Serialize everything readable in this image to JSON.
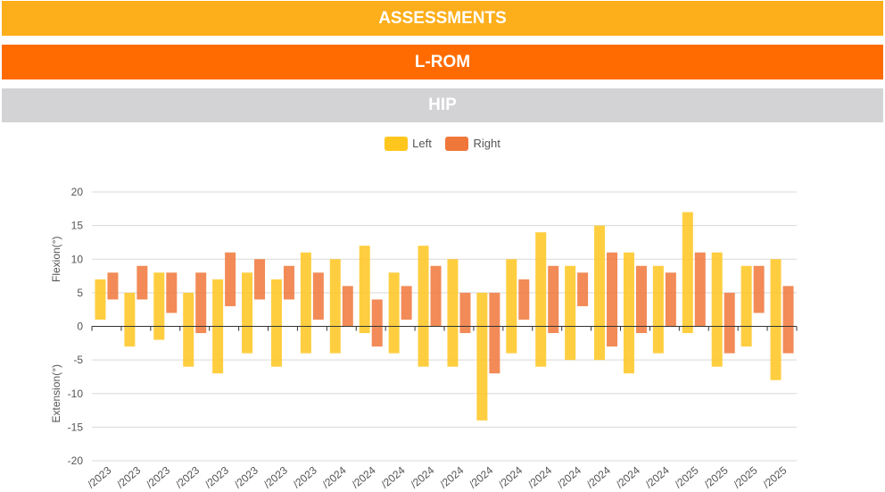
{
  "header": {
    "assessments_label": "ASSESSMENTS",
    "assessments_color": "#FDAE1B",
    "lrom_label": "L-ROM",
    "lrom_color": "#FF6B00",
    "hip_label": "HIP",
    "hip_color": "#D3D3D5"
  },
  "chart_data": {
    "type": "bar",
    "title": "",
    "ylabel_top": "Flexion(°)",
    "ylabel_bottom": "Extension(°)",
    "ylim": [
      -20,
      20
    ],
    "yticks": [
      20,
      15,
      10,
      5,
      0,
      -5,
      -10,
      -15,
      -20
    ],
    "grid": true,
    "legend_position": "top-center",
    "categories": [
      "/2023",
      "/2023",
      "/2023",
      "/2023",
      "/2023",
      "/2023",
      "/2023",
      "/2023",
      "/2024",
      "/2024",
      "/2024",
      "/2024",
      "/2024",
      "/2024",
      "/2024",
      "/2024",
      "/2024",
      "/2024",
      "/2024",
      "/2024",
      "/2025",
      "/2025",
      "/2025",
      "/2025"
    ],
    "series": [
      {
        "name": "Left",
        "color": "#FFC61E",
        "ranges": [
          [
            1,
            7
          ],
          [
            -3,
            5
          ],
          [
            -2,
            8
          ],
          [
            -6,
            5
          ],
          [
            -7,
            7
          ],
          [
            -4,
            8
          ],
          [
            -6,
            7
          ],
          [
            -4,
            11
          ],
          [
            -4,
            10
          ],
          [
            -1,
            12
          ],
          [
            -4,
            8
          ],
          [
            -6,
            12
          ],
          [
            -6,
            10
          ],
          [
            -14,
            5
          ],
          [
            -4,
            10
          ],
          [
            -6,
            14
          ],
          [
            -5,
            9
          ],
          [
            -5,
            15
          ],
          [
            -7,
            11
          ],
          [
            -4,
            9
          ],
          [
            -1,
            17
          ],
          [
            -6,
            11
          ],
          [
            -3,
            9
          ],
          [
            -8,
            10
          ]
        ]
      },
      {
        "name": "Right",
        "color": "#F0773A",
        "ranges": [
          [
            4,
            8
          ],
          [
            4,
            9
          ],
          [
            2,
            8
          ],
          [
            -1,
            8
          ],
          [
            3,
            11
          ],
          [
            4,
            10
          ],
          [
            4,
            9
          ],
          [
            1,
            8
          ],
          [
            0,
            6
          ],
          [
            -3,
            4
          ],
          [
            1,
            6
          ],
          [
            0,
            9
          ],
          [
            -1,
            5
          ],
          [
            -7,
            5
          ],
          [
            1,
            7
          ],
          [
            -1,
            9
          ],
          [
            3,
            8
          ],
          [
            -3,
            11
          ],
          [
            -1,
            9
          ],
          [
            0,
            8
          ],
          [
            0,
            11
          ],
          [
            -4,
            5
          ],
          [
            2,
            9
          ],
          [
            -4,
            6
          ]
        ]
      }
    ]
  }
}
